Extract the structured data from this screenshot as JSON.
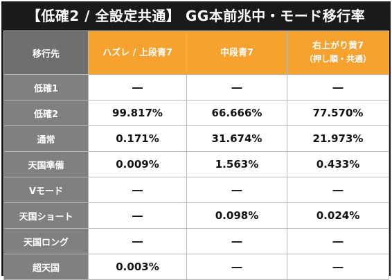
{
  "title": "【低確2 / 全設定共通】 GG本前兆中・モード移行率",
  "table": {
    "corner_label": "移行先",
    "columns": [
      {
        "line1": "ハズレ / 上段青7",
        "line2": ""
      },
      {
        "line1": "中段青7",
        "line2": ""
      },
      {
        "line1": "右上がり黄7",
        "line2": "（押し順・共通）"
      }
    ],
    "rows": [
      {
        "label": "低確1",
        "values": [
          "―",
          "―",
          "―"
        ]
      },
      {
        "label": "低確2",
        "values": [
          "99.817%",
          "66.666%",
          "77.570%"
        ]
      },
      {
        "label": "通常",
        "values": [
          "0.171%",
          "31.674%",
          "21.973%"
        ]
      },
      {
        "label": "天国準備",
        "values": [
          "0.009%",
          "1.563%",
          "0.433%"
        ]
      },
      {
        "label": "Vモード",
        "values": [
          "―",
          "―",
          "―"
        ]
      },
      {
        "label": "天国ショート",
        "values": [
          "―",
          "0.098%",
          "0.024%"
        ]
      },
      {
        "label": "天国ロング",
        "values": [
          "―",
          "―",
          "―"
        ]
      },
      {
        "label": "超天国",
        "values": [
          "0.003%",
          "―",
          "―"
        ]
      }
    ]
  },
  "colors": {
    "frame": "#1a1a1a",
    "header_orange": "#f7a12e",
    "label_gray": "#808080"
  }
}
